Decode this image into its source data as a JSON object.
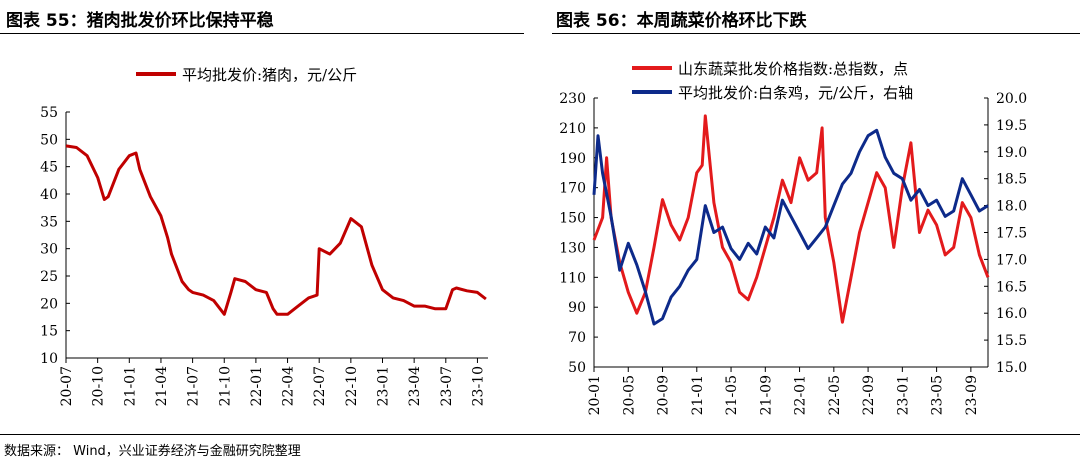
{
  "charts": {
    "left": {
      "title": "图表 55：猪肉批发价环比保持平稳"
    },
    "right": {
      "title": "图表 56：本周蔬菜价格环比下跌"
    }
  },
  "footer": {
    "source": "数据来源： Wind，兴业证券经济与金融研究院整理"
  },
  "chart_data": [
    {
      "type": "line",
      "title": "图表 55：猪肉批发价环比保持平稳",
      "ylim": [
        10,
        55
      ],
      "yticks": [
        10,
        15,
        20,
        25,
        30,
        35,
        40,
        45,
        50,
        55
      ],
      "xlim": [
        "2020-07",
        "2023-11"
      ],
      "xticks": [
        "20-07",
        "20-10",
        "21-01",
        "21-04",
        "21-07",
        "21-10",
        "22-01",
        "22-04",
        "22-07",
        "22-10",
        "23-01",
        "23-04",
        "23-07",
        "23-10"
      ],
      "grid": false,
      "legend": "top-center",
      "colors": {
        "series": "#c00000"
      },
      "series": [
        {
          "name": "平均批发价:猪肉，元/公斤",
          "points": [
            [
              "2020-07",
              48.8
            ],
            [
              "2020-08",
              48.5
            ],
            [
              "2020-09",
              47.0
            ],
            [
              "2020-10",
              43.0
            ],
            [
              "2020-10-20",
              39.0
            ],
            [
              "2020-11",
              39.5
            ],
            [
              "2020-12",
              44.5
            ],
            [
              "2021-01",
              47.0
            ],
            [
              "2021-01-20",
              47.5
            ],
            [
              "2021-02",
              44.5
            ],
            [
              "2021-03",
              39.5
            ],
            [
              "2021-04",
              36.0
            ],
            [
              "2021-04-20",
              32.0
            ],
            [
              "2021-05",
              29.0
            ],
            [
              "2021-06",
              24.0
            ],
            [
              "2021-06-20",
              22.5
            ],
            [
              "2021-07",
              22.0
            ],
            [
              "2021-08",
              21.5
            ],
            [
              "2021-09",
              20.5
            ],
            [
              "2021-10",
              18.0
            ],
            [
              "2021-10-20",
              22.0
            ],
            [
              "2021-11",
              24.5
            ],
            [
              "2021-12",
              24.0
            ],
            [
              "2022-01",
              22.5
            ],
            [
              "2022-02",
              22.0
            ],
            [
              "2022-02-20",
              19.0
            ],
            [
              "2022-03",
              18.0
            ],
            [
              "2022-04",
              18.0
            ],
            [
              "2022-05",
              19.5
            ],
            [
              "2022-06",
              21.0
            ],
            [
              "2022-06-25",
              21.5
            ],
            [
              "2022-07",
              30.0
            ],
            [
              "2022-08",
              29.0
            ],
            [
              "2022-09",
              31.0
            ],
            [
              "2022-10",
              35.5
            ],
            [
              "2022-11",
              34.0
            ],
            [
              "2022-12",
              27.0
            ],
            [
              "2023-01",
              22.5
            ],
            [
              "2023-02",
              21.0
            ],
            [
              "2023-03",
              20.5
            ],
            [
              "2023-04",
              19.5
            ],
            [
              "2023-05",
              19.5
            ],
            [
              "2023-06",
              19.0
            ],
            [
              "2023-07",
              19.0
            ],
            [
              "2023-07-20",
              22.5
            ],
            [
              "2023-08",
              22.8
            ],
            [
              "2023-09",
              22.3
            ],
            [
              "2023-10",
              22.0
            ],
            [
              "2023-10-25",
              20.8
            ]
          ]
        }
      ]
    },
    {
      "type": "line",
      "title": "图表 56：本周蔬菜价格环比下跌",
      "ylim": [
        50,
        230
      ],
      "yticks": [
        50,
        70,
        90,
        110,
        130,
        150,
        170,
        190,
        210,
        230
      ],
      "y2lim": [
        15.0,
        20.0
      ],
      "y2ticks": [
        "15.0",
        "15.5",
        "16.0",
        "16.5",
        "17.0",
        "17.5",
        "18.0",
        "18.5",
        "19.0",
        "19.5",
        "20.0"
      ],
      "xlim": [
        "2020-01",
        "2023-11"
      ],
      "xticks": [
        "20-01",
        "20-05",
        "20-09",
        "21-01",
        "21-05",
        "21-09",
        "22-01",
        "22-05",
        "22-09",
        "23-01",
        "23-05",
        "23-09"
      ],
      "grid": false,
      "legend": "top-center",
      "colors": {
        "series_1": "#e31a1c",
        "series_2": "#0d2a8a"
      },
      "series": [
        {
          "name": "山东蔬菜批发价格指数:总指数，点",
          "axis": "left",
          "points": [
            [
              "2020-01",
              135
            ],
            [
              "2020-02",
              150
            ],
            [
              "2020-02-15",
              190
            ],
            [
              "2020-03",
              150
            ],
            [
              "2020-04",
              120
            ],
            [
              "2020-05",
              100
            ],
            [
              "2020-06",
              86
            ],
            [
              "2020-07",
              100
            ],
            [
              "2020-08",
              130
            ],
            [
              "2020-09",
              162
            ],
            [
              "2020-10",
              145
            ],
            [
              "2020-11",
              135
            ],
            [
              "2020-12",
              150
            ],
            [
              "2021-01",
              180
            ],
            [
              "2021-01-20",
              185
            ],
            [
              "2021-02",
              218
            ],
            [
              "2021-03",
              160
            ],
            [
              "2021-04",
              130
            ],
            [
              "2021-05",
              120
            ],
            [
              "2021-06",
              100
            ],
            [
              "2021-07",
              95
            ],
            [
              "2021-08",
              110
            ],
            [
              "2021-09",
              130
            ],
            [
              "2021-10",
              150
            ],
            [
              "2021-11",
              175
            ],
            [
              "2021-12",
              160
            ],
            [
              "2022-01",
              190
            ],
            [
              "2022-02",
              175
            ],
            [
              "2022-03",
              180
            ],
            [
              "2022-03-20",
              210
            ],
            [
              "2022-04",
              150
            ],
            [
              "2022-05",
              120
            ],
            [
              "2022-06",
              80
            ],
            [
              "2022-07",
              110
            ],
            [
              "2022-08",
              140
            ],
            [
              "2022-09",
              160
            ],
            [
              "2022-10",
              180
            ],
            [
              "2022-11",
              170
            ],
            [
              "2022-12",
              130
            ],
            [
              "2023-01",
              170
            ],
            [
              "2023-02",
              200
            ],
            [
              "2023-03",
              140
            ],
            [
              "2023-04",
              155
            ],
            [
              "2023-05",
              145
            ],
            [
              "2023-06",
              125
            ],
            [
              "2023-07",
              130
            ],
            [
              "2023-08",
              160
            ],
            [
              "2023-09",
              150
            ],
            [
              "2023-10",
              125
            ],
            [
              "2023-11",
              110
            ]
          ]
        },
        {
          "name": "平均批发价:白条鸡，元/公斤，右轴",
          "axis": "right",
          "points": [
            [
              "2020-01",
              18.2
            ],
            [
              "2020-01-15",
              19.3
            ],
            [
              "2020-02",
              18.6
            ],
            [
              "2020-03",
              17.8
            ],
            [
              "2020-04",
              16.8
            ],
            [
              "2020-05",
              17.3
            ],
            [
              "2020-06",
              16.9
            ],
            [
              "2020-07",
              16.4
            ],
            [
              "2020-08",
              15.8
            ],
            [
              "2020-09",
              15.9
            ],
            [
              "2020-10",
              16.3
            ],
            [
              "2020-11",
              16.5
            ],
            [
              "2020-12",
              16.8
            ],
            [
              "2021-01",
              17.0
            ],
            [
              "2021-02",
              18.0
            ],
            [
              "2021-03",
              17.5
            ],
            [
              "2021-04",
              17.6
            ],
            [
              "2021-05",
              17.2
            ],
            [
              "2021-06",
              17.0
            ],
            [
              "2021-07",
              17.3
            ],
            [
              "2021-08",
              17.1
            ],
            [
              "2021-09",
              17.6
            ],
            [
              "2021-10",
              17.4
            ],
            [
              "2021-11",
              18.1
            ],
            [
              "2021-12",
              17.8
            ],
            [
              "2022-01",
              17.5
            ],
            [
              "2022-02",
              17.2
            ],
            [
              "2022-03",
              17.4
            ],
            [
              "2022-04",
              17.6
            ],
            [
              "2022-05",
              18.0
            ],
            [
              "2022-06",
              18.4
            ],
            [
              "2022-07",
              18.6
            ],
            [
              "2022-08",
              19.0
            ],
            [
              "2022-09",
              19.3
            ],
            [
              "2022-10",
              19.4
            ],
            [
              "2022-11",
              18.9
            ],
            [
              "2022-12",
              18.6
            ],
            [
              "2023-01",
              18.5
            ],
            [
              "2023-02",
              18.1
            ],
            [
              "2023-03",
              18.3
            ],
            [
              "2023-04",
              18.0
            ],
            [
              "2023-05",
              18.1
            ],
            [
              "2023-06",
              17.8
            ],
            [
              "2023-07",
              17.9
            ],
            [
              "2023-08",
              18.5
            ],
            [
              "2023-09",
              18.2
            ],
            [
              "2023-10",
              17.9
            ],
            [
              "2023-11",
              18.0
            ]
          ]
        }
      ]
    }
  ]
}
